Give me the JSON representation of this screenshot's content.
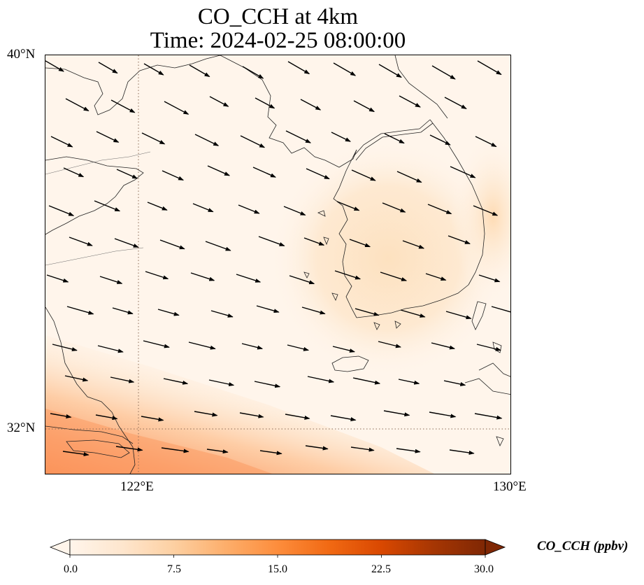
{
  "title": {
    "line1": "CO_CCH at 4km",
    "line2": "Time: 2024-02-25 08:00:00"
  },
  "axes": {
    "lat_ticks": [
      "40°N",
      "32°N"
    ],
    "lon_ticks": [
      "122°E",
      "130°E"
    ],
    "extent": {
      "lon_min": 120,
      "lon_max": 130,
      "lat_min": 31,
      "lat_max": 40
    },
    "gridlines": {
      "lon": 122,
      "lat": 32,
      "style": "dotted"
    }
  },
  "colorbar": {
    "label": "CO_CCH (ppbv)",
    "ticks": [
      "0.0",
      "7.5",
      "15.0",
      "22.5",
      "30.0"
    ],
    "min": 0,
    "max": 30,
    "extend": "both",
    "colormap": [
      "#fff5eb",
      "#fee6ce",
      "#fdd0a2",
      "#fdae6b",
      "#fd8d3c",
      "#f16913",
      "#d94801",
      "#a63603",
      "#7f2704"
    ]
  },
  "field": {
    "background_value_ppbv": 1.5,
    "korea_value_ppbv": 4,
    "southwest_value_ppbv": 12,
    "wind_direction": "from west-northwest"
  }
}
